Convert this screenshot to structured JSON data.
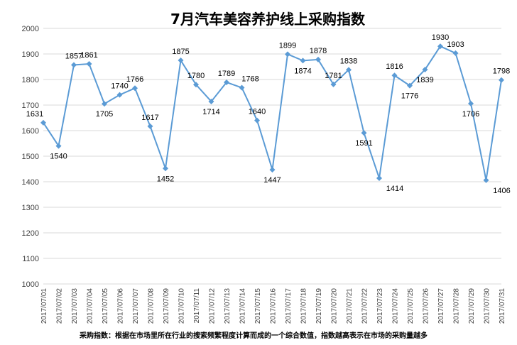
{
  "chart_data": {
    "type": "line",
    "title": "7月汽车美容养护线上采购指数",
    "footnote": "采购指数：根据在市场里所在行业的搜索频繁程度计算而成的一个综合数值，指数越高表示在市场的采购量越多",
    "ylim": [
      1000,
      2000
    ],
    "yticks": [
      1000,
      1100,
      1200,
      1300,
      1400,
      1500,
      1600,
      1700,
      1800,
      1900,
      2000
    ],
    "grid": true,
    "line_color": "#5b9bd5",
    "categories": [
      "2017/07/01",
      "2017/07/02",
      "2017/07/03",
      "2017/07/04",
      "2017/07/05",
      "2017/07/06",
      "2017/07/07",
      "2017/07/08",
      "2017/07/09",
      "2017/07/10",
      "2017/07/11",
      "2017/07/12",
      "2017/07/13",
      "2017/07/14",
      "2017/07/15",
      "2017/07/16",
      "2017/07/17",
      "2017/07/18",
      "2017/07/19",
      "2017/07/20",
      "2017/07/21",
      "2017/07/22",
      "2017/07/23",
      "2017/07/24",
      "2017/07/25",
      "2017/07/26",
      "2017/07/27",
      "2017/07/28",
      "2017/07/29",
      "2017/07/30",
      "2017/07/31"
    ],
    "values": [
      1631,
      1540,
      1857,
      1861,
      1705,
      1740,
      1766,
      1617,
      1452,
      1875,
      1780,
      1714,
      1789,
      1768,
      1640,
      1447,
      1899,
      1874,
      1878,
      1781,
      1838,
      1591,
      1414,
      1816,
      1776,
      1839,
      1930,
      1903,
      1706,
      1406,
      1798
    ],
    "labeled_points": [
      {
        "value": 1631,
        "shown": "1631"
      },
      {
        "value": 1540,
        "shown": "1540"
      },
      {
        "value": 1857,
        "shown": "1857"
      },
      {
        "value": 1861,
        "shown": "1861"
      },
      {
        "value": 1705,
        "shown": "1705"
      },
      {
        "value": 1740,
        "shown": "1740"
      },
      {
        "value": 1766,
        "shown": "1766"
      },
      {
        "value": 1617,
        "shown": "1617"
      },
      {
        "value": 1452,
        "shown": "1452"
      },
      {
        "value": 1875,
        "shown": "1875"
      },
      {
        "value": 1780,
        "shown": "1780"
      },
      {
        "value": 1714,
        "shown": "1714"
      },
      {
        "value": 1789,
        "shown": "1789"
      },
      {
        "value": 1768,
        "shown": "1768"
      },
      {
        "value": 1640,
        "shown": "1640"
      },
      {
        "value": 1447,
        "shown": "1447"
      },
      {
        "value": 1899,
        "shown": "1899"
      },
      {
        "value": 1874,
        "shown": "1874"
      },
      {
        "value": 1878,
        "shown": "1878"
      },
      {
        "value": 1781,
        "shown": "1781"
      },
      {
        "value": 1838,
        "shown": "1838"
      },
      {
        "value": 1591,
        "shown": "1591"
      },
      {
        "value": 1414,
        "shown": "1414"
      },
      {
        "value": 1816,
        "shown": "1816"
      },
      {
        "value": 1776,
        "shown": "1776"
      },
      {
        "value": 1839,
        "shown": "1839"
      },
      {
        "value": 1930,
        "shown": "1930"
      },
      {
        "value": 1903,
        "shown": "1903"
      },
      {
        "value": 1706,
        "shown": "1706"
      },
      {
        "value": 1406,
        "shown": "1406"
      },
      {
        "value": 1798,
        "shown": "1798"
      }
    ]
  }
}
